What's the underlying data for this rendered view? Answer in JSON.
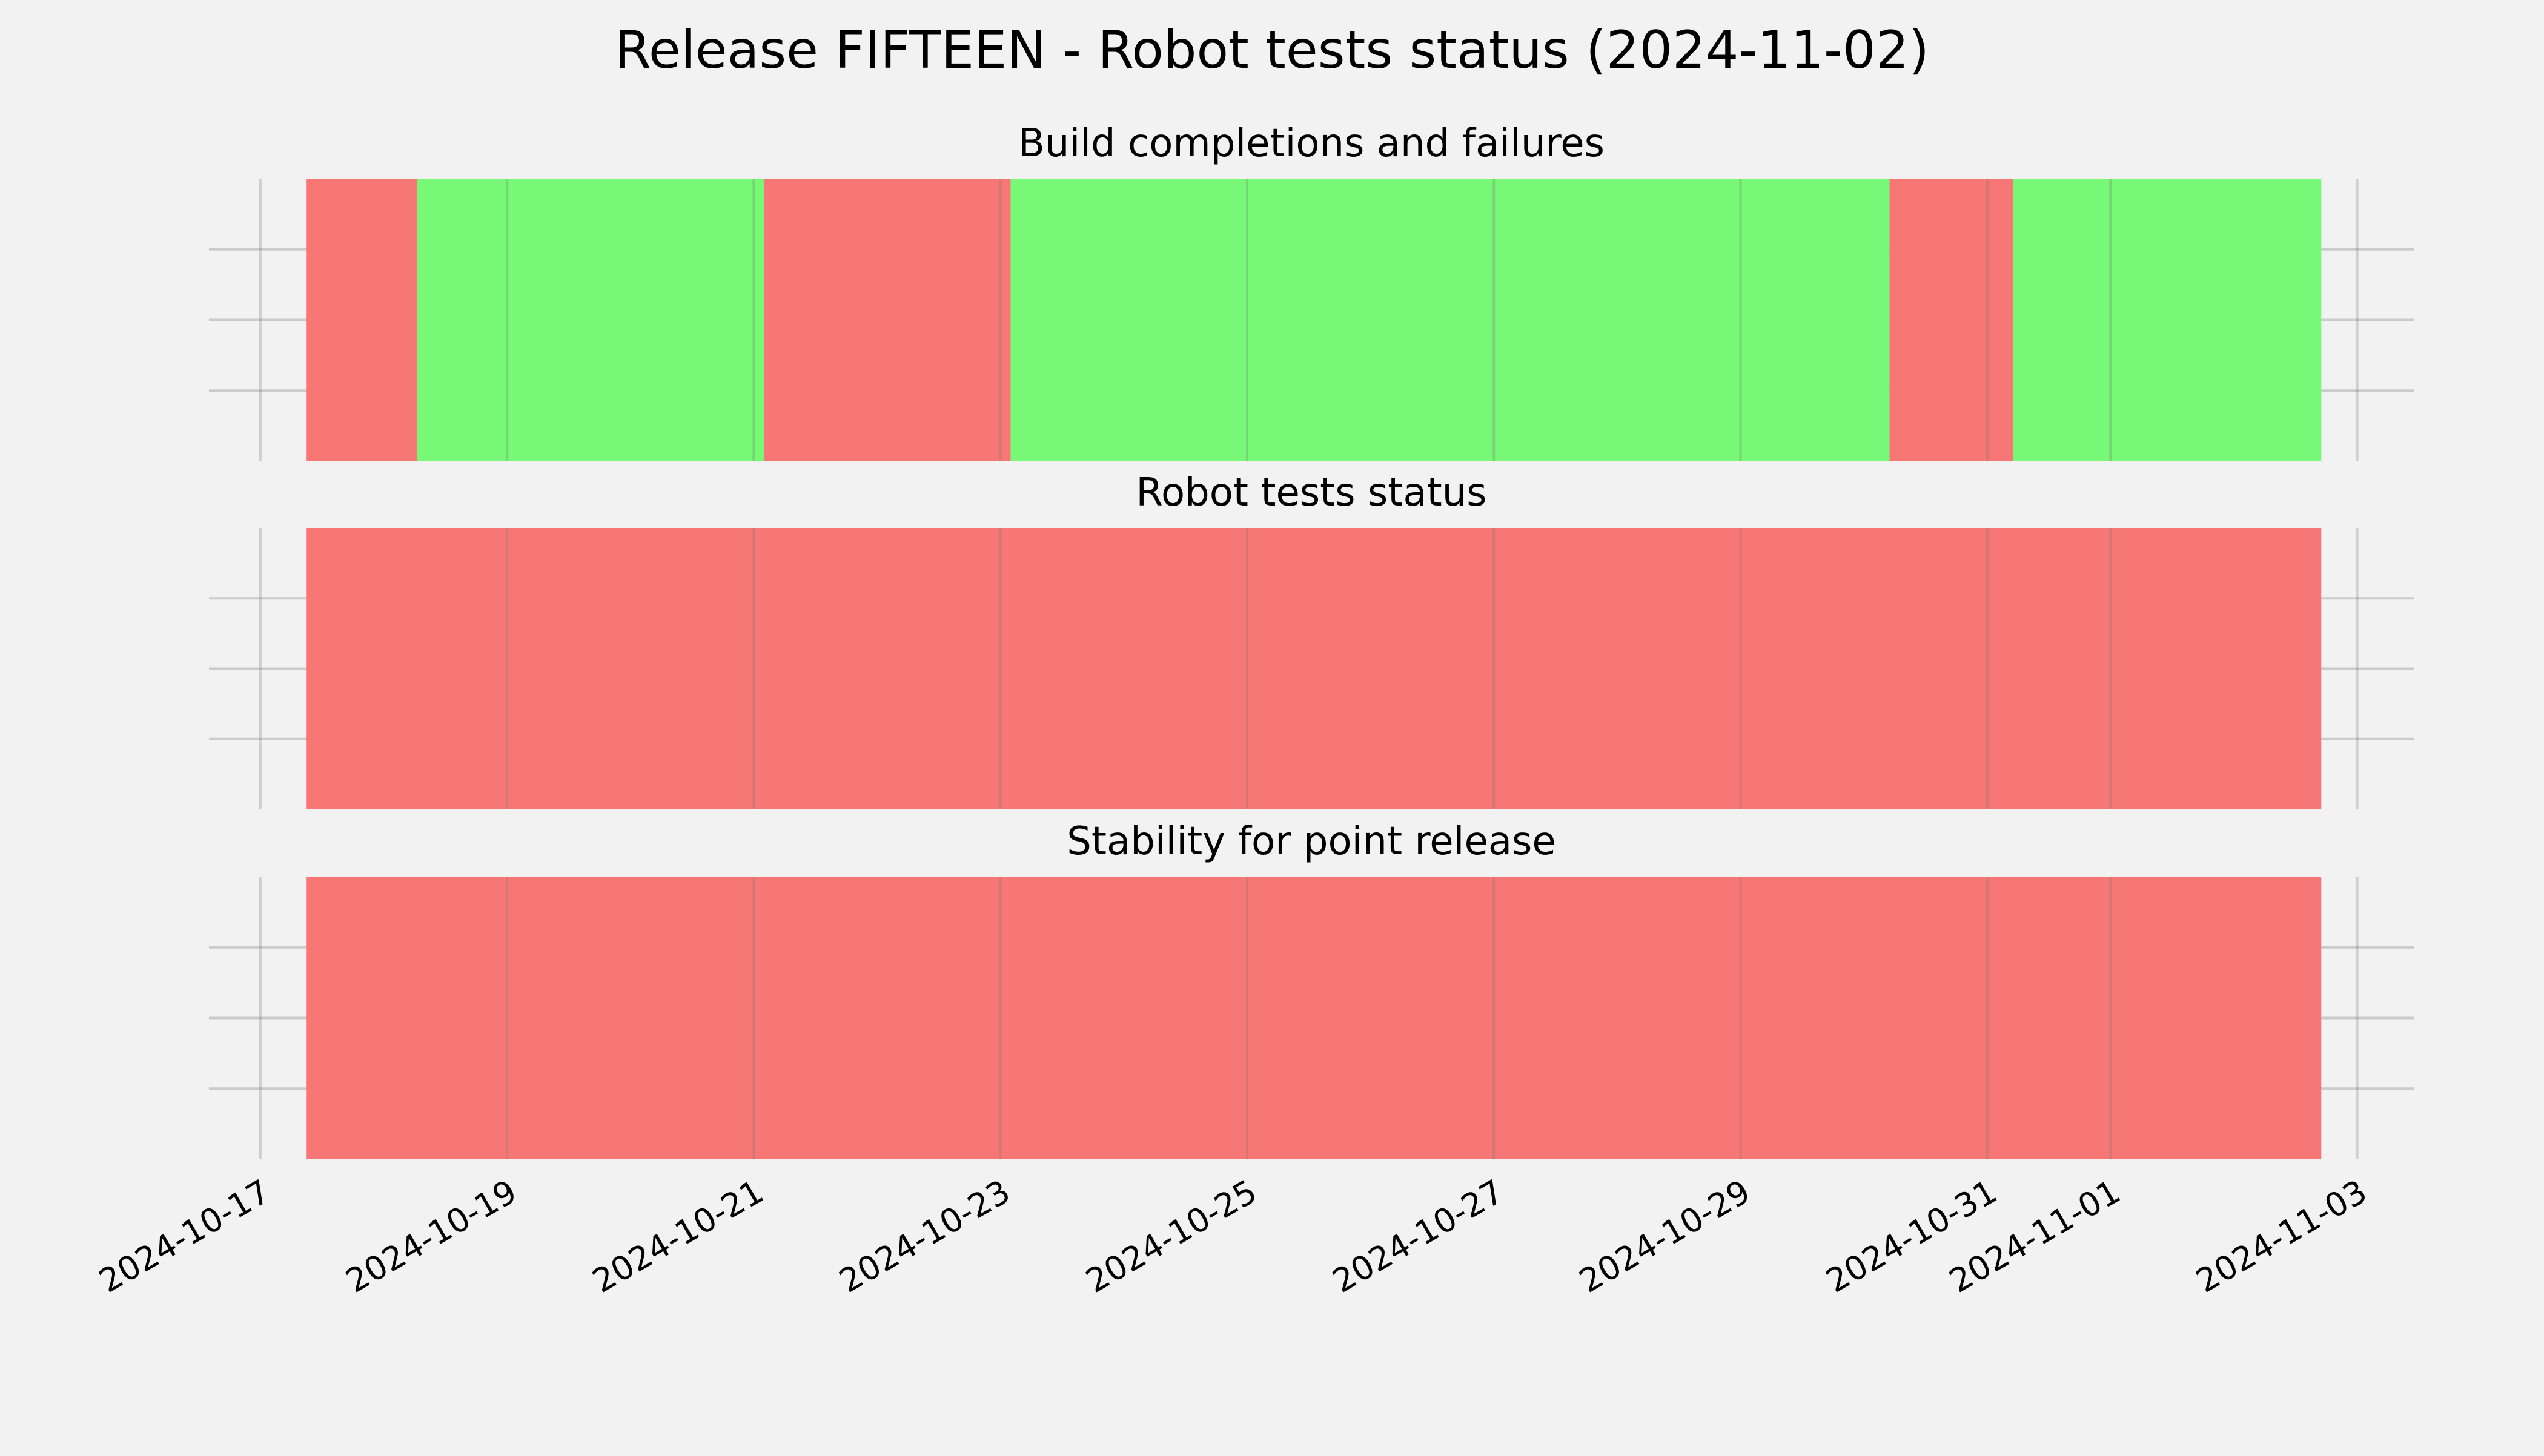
{
  "chart_data": {
    "type": "timeline",
    "title": "Release FIFTEEN - Robot tests status (2024-11-02)",
    "x_ticks": [
      "2024-10-17",
      "2024-10-19",
      "2024-10-21",
      "2024-10-23",
      "2024-10-25",
      "2024-10-27",
      "2024-10-29",
      "2024-10-31",
      "2024-11-01",
      "2024-11-03"
    ],
    "xlim": [
      "2024-10-16T14:00",
      "2024-11-03T11:00"
    ],
    "grid": true,
    "colors": {
      "pass": "#77f877",
      "fail": "#f77777",
      "background": "#f2f2f2",
      "grid": "#cbcbcb"
    },
    "panels": [
      {
        "title": "Build completions and failures",
        "segments": [
          {
            "start": "2024-10-17T09:00",
            "end": "2024-10-18T06:30",
            "status": "fail"
          },
          {
            "start": "2024-10-18T06:30",
            "end": "2024-10-21T02:00",
            "status": "pass"
          },
          {
            "start": "2024-10-21T02:00",
            "end": "2024-10-23T02:00",
            "status": "fail"
          },
          {
            "start": "2024-10-23T02:00",
            "end": "2024-10-30T05:00",
            "status": "pass"
          },
          {
            "start": "2024-10-30T05:00",
            "end": "2024-10-31T05:00",
            "status": "fail"
          },
          {
            "start": "2024-10-31T05:00",
            "end": "2024-11-02T17:00",
            "status": "pass"
          }
        ]
      },
      {
        "title": "Robot tests status",
        "segments": [
          {
            "start": "2024-10-17T09:00",
            "end": "2024-11-02T17:00",
            "status": "fail"
          }
        ]
      },
      {
        "title": "Stability for point release",
        "segments": [
          {
            "start": "2024-10-17T09:00",
            "end": "2024-11-02T17:00",
            "status": "fail"
          }
        ]
      }
    ]
  }
}
